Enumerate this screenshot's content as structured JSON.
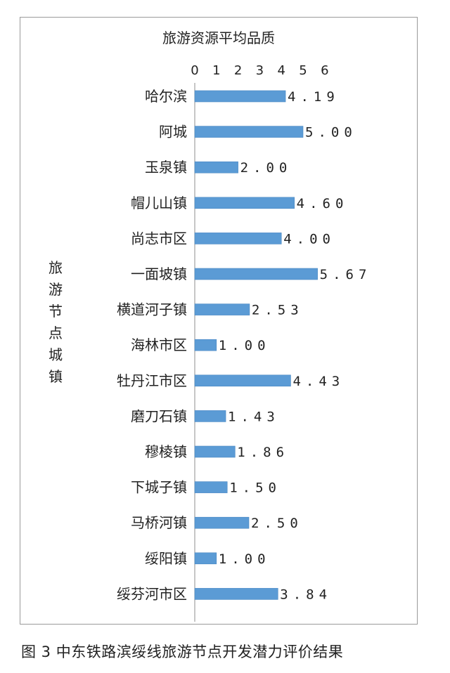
{
  "figure": {
    "caption": "图 3  中东铁路滨绥线旅游节点开发潜力评价结果"
  },
  "chart_data": {
    "type": "bar",
    "orientation": "horizontal",
    "title": "旅游资源平均品质",
    "xlabel": "",
    "ylabel": "旅游节点城镇",
    "xlim": [
      0,
      6
    ],
    "x_ticks": [
      0,
      1,
      2,
      3,
      4,
      5,
      6
    ],
    "axis_position": "top",
    "grid": false,
    "bar_color": "#5b9bd5",
    "categories": [
      "哈尔滨",
      "阿城",
      "玉泉镇",
      "帽儿山镇",
      "尚志市区",
      "一面坡镇",
      "横道河子镇",
      "海林市区",
      "牡丹江市区",
      "磨刀石镇",
      "穆棱镇",
      "下城子镇",
      "马桥河镇",
      "绥阳镇",
      "绥芬河市区"
    ],
    "values": [
      4.19,
      5.0,
      2.0,
      4.6,
      4.0,
      5.67,
      2.53,
      1.0,
      4.43,
      1.43,
      1.86,
      1.5,
      2.5,
      1.0,
      3.84
    ],
    "data_labels": [
      "4.19",
      "5.00",
      "2.00",
      "4.60",
      "4.00",
      "5.67",
      "2.53",
      "1.00",
      "4.43",
      "1.43",
      "1.86",
      "1.50",
      "2.50",
      "1.00",
      "3.84"
    ]
  }
}
